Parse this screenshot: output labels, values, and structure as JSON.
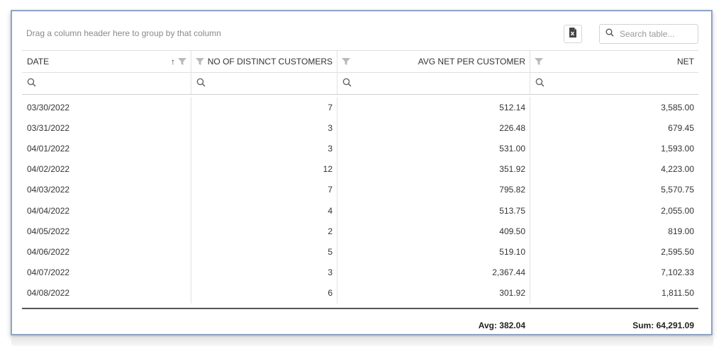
{
  "toolbar": {
    "group_hint": "Drag a column header here to group by that column",
    "export_icon": "excel-export-icon",
    "search_placeholder": "Search table..."
  },
  "columns": [
    {
      "label": "DATE",
      "sorted": "ascending"
    },
    {
      "label": "NO OF DISTINCT CUSTOMERS"
    },
    {
      "label": "AVG NET PER CUSTOMER"
    },
    {
      "label": "NET"
    }
  ],
  "rows": [
    {
      "date": "03/30/2022",
      "customers": "7",
      "avg": "512.14",
      "net": "3,585.00"
    },
    {
      "date": "03/31/2022",
      "customers": "3",
      "avg": "226.48",
      "net": "679.45"
    },
    {
      "date": "04/01/2022",
      "customers": "3",
      "avg": "531.00",
      "net": "1,593.00"
    },
    {
      "date": "04/02/2022",
      "customers": "12",
      "avg": "351.92",
      "net": "4,223.00"
    },
    {
      "date": "04/03/2022",
      "customers": "7",
      "avg": "795.82",
      "net": "5,570.75"
    },
    {
      "date": "04/04/2022",
      "customers": "4",
      "avg": "513.75",
      "net": "2,055.00"
    },
    {
      "date": "04/05/2022",
      "customers": "2",
      "avg": "409.50",
      "net": "819.00"
    },
    {
      "date": "04/06/2022",
      "customers": "5",
      "avg": "519.10",
      "net": "2,595.50"
    },
    {
      "date": "04/07/2022",
      "customers": "3",
      "avg": "2,367.44",
      "net": "7,102.33"
    },
    {
      "date": "04/08/2022",
      "customers": "6",
      "avg": "301.92",
      "net": "1,811.50"
    }
  ],
  "totals": {
    "avg": "Avg: 382.04",
    "net": "Sum: 64,291.09"
  }
}
